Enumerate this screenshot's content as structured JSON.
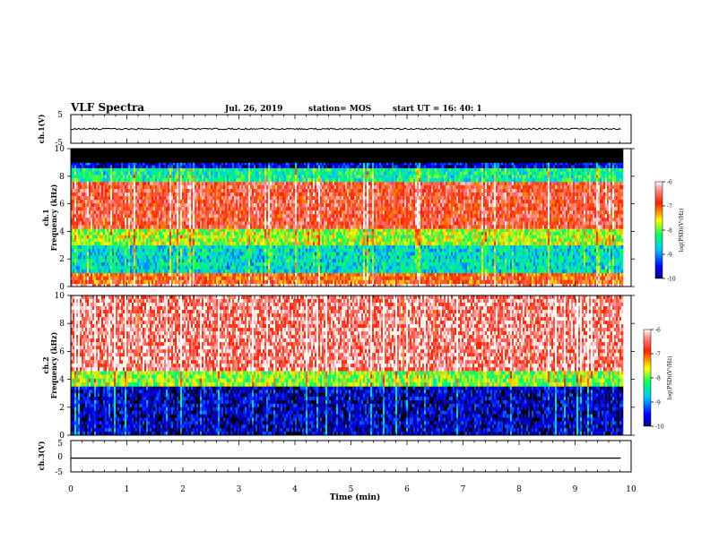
{
  "header": {
    "title": "VLF Spectra",
    "date": "Jul. 26, 2019",
    "station": "station= MOS",
    "start": "start UT = 16: 40: 1"
  },
  "chart_data": [
    {
      "type": "line",
      "panel": "ch1-waveform",
      "ylabel": "ch.1(V)",
      "ylim": [
        -5,
        5
      ],
      "yticks": [
        "5",
        "-5"
      ],
      "series": [
        {
          "x": [
            0,
            9.83
          ],
          "values": [
            0,
            0
          ]
        }
      ]
    },
    {
      "type": "heatmap",
      "panel": "ch1-spectrogram",
      "ylabel": "ch.1\nFrequency (kHz)",
      "ylim": [
        0,
        10
      ],
      "yticks": [
        "0",
        "2",
        "4",
        "6",
        "8",
        "10"
      ],
      "xlim": [
        0,
        9.83
      ],
      "colorbar": {
        "label": "log(PSD)(V²/Hz)",
        "ticks": [
          "-6",
          "-7",
          "-8",
          "-9",
          "-10"
        ],
        "range": [
          -10,
          -6
        ]
      },
      "bands": [
        {
          "from": 0,
          "to": 0.2,
          "level": -6.2
        },
        {
          "from": 0.2,
          "to": 1.0,
          "level": -7.0
        },
        {
          "from": 1.0,
          "to": 3.0,
          "level": -8.6
        },
        {
          "from": 3.0,
          "to": 4.2,
          "level": -7.8
        },
        {
          "from": 4.2,
          "to": 7.6,
          "level": -6.7
        },
        {
          "from": 7.6,
          "to": 8.6,
          "level": -8.4
        },
        {
          "from": 8.6,
          "to": 9.0,
          "level": -9.6
        },
        {
          "from": 9.0,
          "to": 10,
          "level": -11
        }
      ]
    },
    {
      "type": "heatmap",
      "panel": "ch2-spectrogram",
      "ylabel": "ch.2\nFrequency (kHz)",
      "ylim": [
        0,
        10
      ],
      "yticks": [
        "0",
        "2",
        "4",
        "6",
        "8",
        "10"
      ],
      "xlim": [
        0,
        9.83
      ],
      "colorbar": {
        "label": "log(PSD)(V²/Hz)",
        "ticks": [
          "-6",
          "-7",
          "-8",
          "-9",
          "-10"
        ],
        "range": [
          -10,
          -6
        ]
      },
      "bands": [
        {
          "from": 0,
          "to": 3.5,
          "level": -9.7
        },
        {
          "from": 3.5,
          "to": 4.6,
          "level": -7.9
        },
        {
          "from": 4.6,
          "to": 10,
          "level": -6.4
        }
      ]
    },
    {
      "type": "line",
      "panel": "ch3-waveform",
      "ylabel": "ch.3(V)",
      "ylim": [
        -5,
        5
      ],
      "yticks": [
        "5",
        "0",
        "-5"
      ],
      "series": [
        {
          "x": [
            0,
            9.83
          ],
          "values": [
            -0.6,
            -0.6
          ]
        }
      ]
    }
  ],
  "xaxis": {
    "label": "Time (min)",
    "ticks": [
      "0",
      "1",
      "2",
      "3",
      "4",
      "5",
      "6",
      "7",
      "8",
      "9",
      "10"
    ],
    "range": [
      0,
      10
    ]
  }
}
